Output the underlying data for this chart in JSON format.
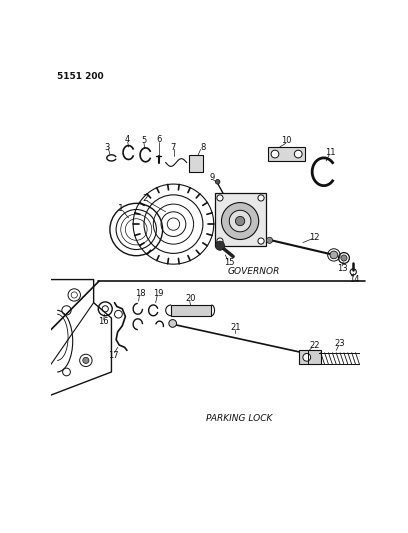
{
  "page_id": "5151 200",
  "background_color": "#ffffff",
  "line_color": "#111111",
  "governor_label": "GOVERNOR",
  "parking_label": "PARKING LOCK",
  "fig_width": 4.08,
  "fig_height": 5.33,
  "dpi": 100
}
